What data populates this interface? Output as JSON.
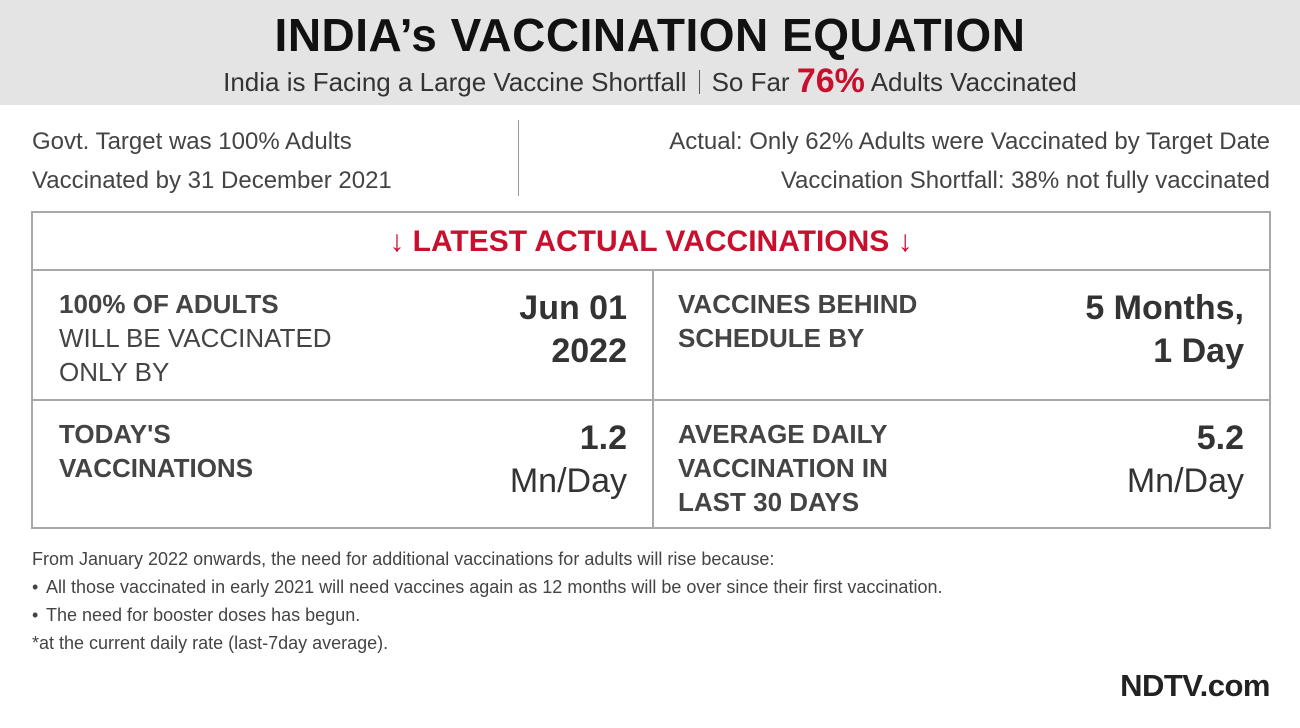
{
  "header": {
    "title": "INDIA’s VACCINATION EQUATION",
    "subtitle_left": "India is Facing a Large Vaccine Shortfall",
    "subtitle_right_prefix": "So Far",
    "subtitle_right_value": "76%",
    "subtitle_right_suffix": "Adults Vaccinated"
  },
  "info": {
    "left_line1": "Govt. Target was 100% Adults",
    "left_line2": "Vaccinated by 31 December 2021",
    "right_line1": "Actual: Only 62% Adults were Vaccinated by Target Date",
    "right_line2": "Vaccination Shortfall: 38% not fully vaccinated"
  },
  "panel": {
    "heading": "↓ LATEST ACTUAL VACCINATIONS ↓",
    "cells": [
      {
        "label_bold": "100% OF ADULTS",
        "label_line2": "WILL BE VACCINATED",
        "label_line3": "ONLY BY",
        "value_line1": "Jun 01",
        "value_line2": "2022"
      },
      {
        "label_line1": "VACCINES BEHIND",
        "label_line2": "SCHEDULE BY",
        "value_line1": "5 Months,",
        "value_line2": "1 Day"
      },
      {
        "label_line1": "TODAY'S",
        "label_line2": "VACCINATIONS",
        "value_line1": "1.2",
        "value_line2": "Mn/Day"
      },
      {
        "label_line1": "AVERAGE DAILY",
        "label_line2": "VACCINATION IN",
        "label_line3": "LAST 30 DAYS",
        "value_line1": "5.2",
        "value_line2": "Mn/Day"
      }
    ]
  },
  "notes": {
    "intro": "From January 2022 onwards, the need for additional vaccinations for adults will rise because:",
    "bullets": [
      "All those vaccinated in early 2021 will need vaccines again as 12 months will be over since their first vaccination.",
      "The need for booster doses has begun."
    ],
    "footnote": "*at the current daily rate (last-7day average)."
  },
  "brand": "NDTV.com",
  "colors": {
    "accent": "#c8102e",
    "header_bg": "#e4e4e4",
    "border": "#a8a8a8"
  }
}
